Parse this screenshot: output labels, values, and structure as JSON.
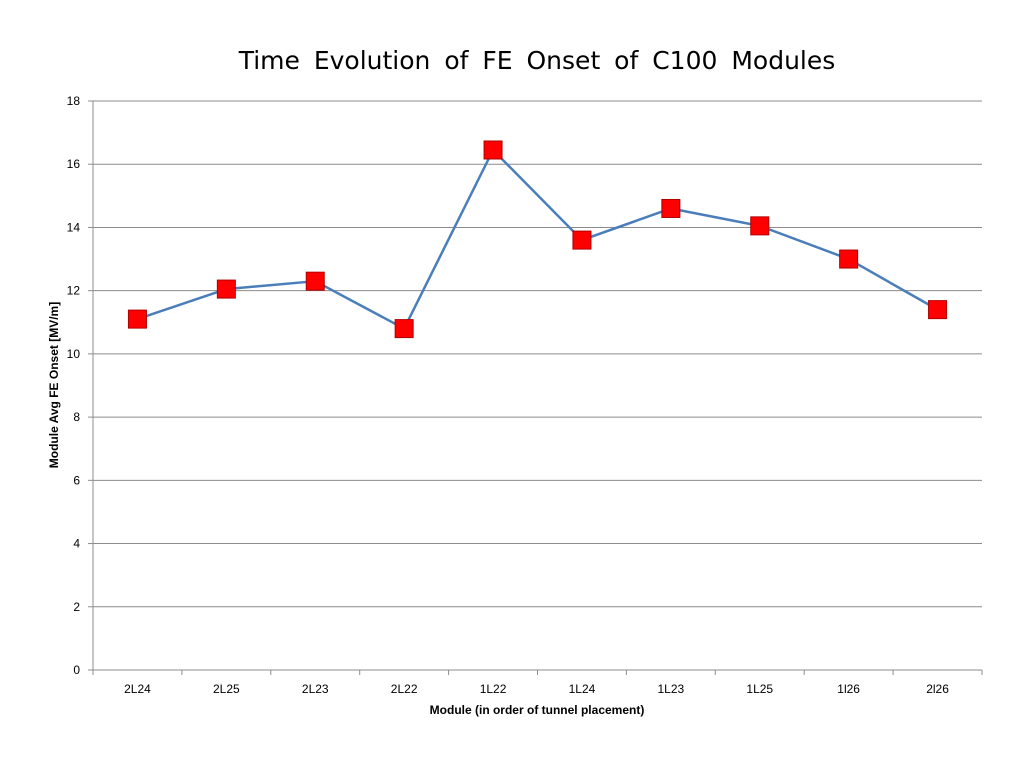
{
  "chart_data": {
    "type": "line",
    "title": "Time Evolution of FE Onset of C100 Modules",
    "xlabel": "Module (in order of tunnel placement)",
    "ylabel": "Module Avg FE Onset [MV/m]",
    "categories": [
      "2L24",
      "2L25",
      "2L23",
      "2L22",
      "1L22",
      "1L24",
      "1L23",
      "1L25",
      "1l26",
      "2l26"
    ],
    "series": [
      {
        "name": "Module Avg FE Onset",
        "values": [
          11.1,
          12.05,
          12.3,
          10.8,
          16.45,
          13.6,
          14.6,
          14.05,
          13.0,
          11.4
        ],
        "line_color": "#4a7ebb",
        "marker_color": "#ff0000",
        "marker": "square"
      }
    ],
    "ylim": [
      0,
      18
    ],
    "yticks": [
      0,
      2,
      4,
      6,
      8,
      10,
      12,
      14,
      16,
      18
    ],
    "grid": true,
    "legend": "none"
  }
}
